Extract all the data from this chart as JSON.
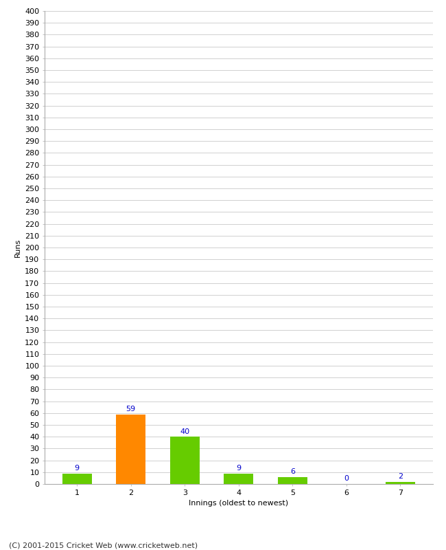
{
  "categories": [
    "1",
    "2",
    "3",
    "4",
    "5",
    "6",
    "7"
  ],
  "values": [
    9,
    59,
    40,
    9,
    6,
    0,
    2
  ],
  "bar_colors": [
    "#66cc00",
    "#ff8800",
    "#66cc00",
    "#66cc00",
    "#66cc00",
    "#66cc00",
    "#66cc00"
  ],
  "ylabel": "Runs",
  "xlabel": "Innings (oldest to newest)",
  "ylim": [
    0,
    400
  ],
  "background_color": "#ffffff",
  "grid_color": "#d0d0d0",
  "label_color": "#0000cc",
  "footer": "(C) 2001-2015 Cricket Web (www.cricketweb.net)",
  "label_fontsize": 8,
  "axis_fontsize": 8,
  "footer_fontsize": 8,
  "bar_width": 0.55
}
